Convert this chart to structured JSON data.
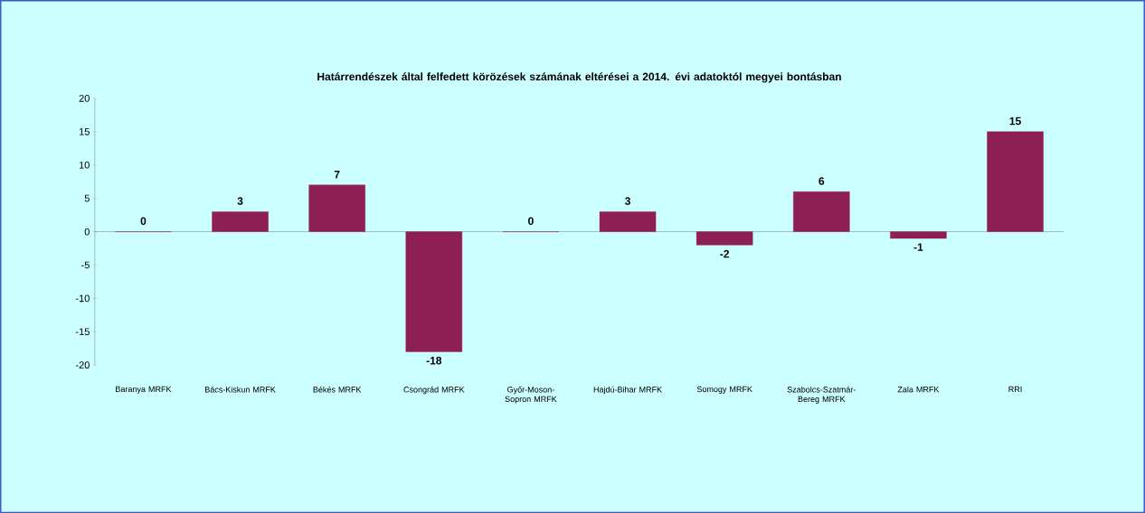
{
  "chart_data": {
    "type": "bar",
    "title": "Határrendészek által felfedett körözések számának eltérései a 2014. évi adatoktól megyei bontásban",
    "categories": [
      "Baranya MRFK",
      "Bács-Kiskun MRFK",
      "Békés MRFK",
      "Csongrád MRFK",
      "Győr-Moson-Sopron MRFK",
      "Hajdú-Bihar MRFK",
      "Somogy MRFK",
      "Szabolcs-Szatmár-Bereg MRFK",
      "Zala MRFK",
      "RRI"
    ],
    "values": [
      0,
      3,
      7,
      -18,
      0,
      3,
      -2,
      6,
      -1,
      15
    ],
    "color": "#8e1f52",
    "ylim": [
      -20,
      20
    ],
    "yticks": [
      -20,
      -15,
      -10,
      -5,
      0,
      5,
      10,
      15,
      20
    ],
    "data_labels": true
  }
}
